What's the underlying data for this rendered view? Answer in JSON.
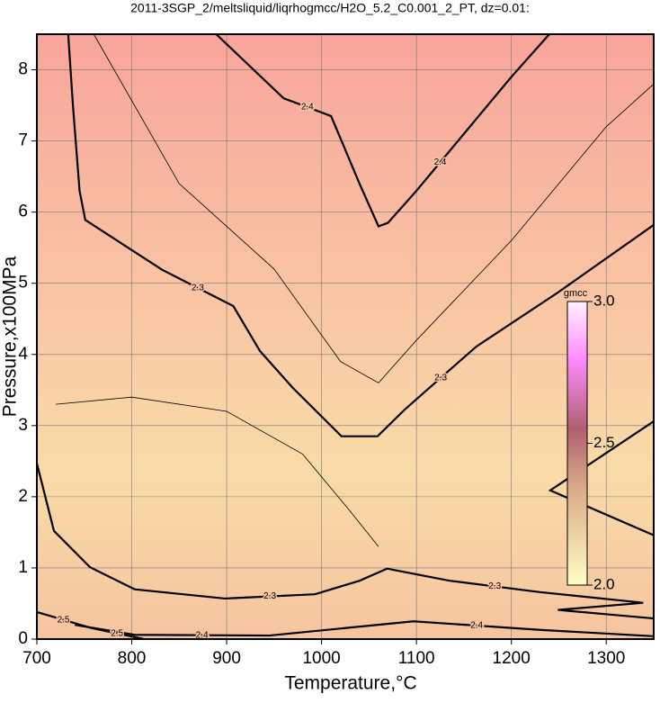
{
  "chart_data": {
    "type": "contour",
    "title": "2011-3SGP_2/meltsliquid/liqrhogmcc/H2O_5.2_C0.001_2_PT, dz=0.01:",
    "x_label": "Temperature,°C",
    "y_label": "Pressure,x100MPa",
    "xlim": [
      700,
      1350
    ],
    "ylim": [
      0,
      8.5
    ],
    "xticks": [
      700,
      800,
      900,
      1000,
      1100,
      1200,
      1300
    ],
    "yticks": [
      0,
      1,
      2,
      3,
      4,
      5,
      6,
      7,
      8
    ],
    "grid": true,
    "contours": [
      {
        "level": 2.4,
        "label": "2.4",
        "x": [
          889,
          960,
          1010,
          1040,
          1060,
          1070,
          1100,
          1150,
          1200,
          1240
        ],
        "y": [
          8.5,
          7.6,
          7.35,
          6.4,
          5.8,
          5.85,
          6.3,
          7.1,
          7.9,
          8.5
        ]
      },
      {
        "level": 2.3,
        "label": "2.3",
        "x": [
          733,
          738,
          745,
          751,
          832,
          907,
          935,
          969,
          1021,
          1059,
          1088,
          1163,
          1249,
          1350
        ],
        "y": [
          8.5,
          7.5,
          6.3,
          5.89,
          5.19,
          4.68,
          4.05,
          3.54,
          2.85,
          2.85,
          3.23,
          4.11,
          4.87,
          5.82
        ]
      },
      {
        "level": 2.3,
        "label": "2.3",
        "x": [
          700,
          718,
          756,
          803,
          898,
          993,
          1040,
          1069,
          1135,
          1230,
          1339,
          1249,
          1350
        ],
        "y": [
          2.47,
          1.52,
          1.01,
          0.7,
          0.57,
          0.63,
          0.82,
          0.99,
          0.82,
          0.66,
          0.51,
          0.41,
          0.29
        ]
      },
      {
        "level": 2.4,
        "label": "2.4",
        "x": [
          740,
          803,
          945,
          1097,
          1230,
          1350
        ],
        "y": [
          0.2,
          0.06,
          0.05,
          0.25,
          0.13,
          0.04
        ]
      },
      {
        "level": 2.5,
        "label": "2.5",
        "x": [
          700,
          756,
          813
        ],
        "y": [
          0.38,
          0.16,
          0
        ]
      },
      {
        "level": 2.2,
        "x": [
          1350,
          1241,
          1350
        ],
        "y": [
          3.06,
          2.09,
          1.46
        ]
      },
      {
        "level": 2.35,
        "x": [
          760,
          850,
          950,
          1020,
          1060,
          1100,
          1200,
          1300,
          1350
        ],
        "y": [
          8.5,
          6.4,
          5.2,
          3.9,
          3.6,
          4.2,
          5.6,
          7.2,
          7.8
        ]
      },
      {
        "level": 2.25,
        "x": [
          720,
          800,
          900,
          980,
          1030,
          1060
        ],
        "y": [
          3.3,
          3.4,
          3.2,
          2.6,
          1.8,
          1.3
        ]
      }
    ],
    "colorbar": {
      "label": "gmcc",
      "lim": [
        2,
        3
      ],
      "ticks": [
        {
          "value": 2,
          "label": "2.0"
        },
        {
          "value": 2.5,
          "label": "2.5"
        },
        {
          "value": 3,
          "label": "3.0"
        }
      ]
    }
  }
}
